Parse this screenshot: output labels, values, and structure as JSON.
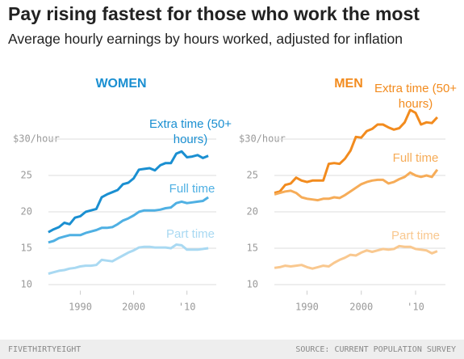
{
  "title": "Pay rising fastest for those who work the most",
  "subtitle": "Average hourly earnings by hours worked, adjusted for inflation",
  "footer": {
    "left": "FIVETHIRTYEIGHT",
    "right": "SOURCE: CURRENT POPULATION SURVEY"
  },
  "chart_data": [
    {
      "type": "line",
      "title": "WOMEN",
      "title_color": "#1a8fd1",
      "x": [
        1984,
        1985,
        1986,
        1987,
        1988,
        1989,
        1990,
        1991,
        1992,
        1993,
        1994,
        1995,
        1996,
        1997,
        1998,
        1999,
        2000,
        2001,
        2002,
        2003,
        2004,
        2005,
        2006,
        2007,
        2008,
        2009,
        2010,
        2011,
        2012,
        2013,
        2014
      ],
      "xlim": [
        1982.5,
        2015.5
      ],
      "xticks": [
        1990,
        2000,
        {
          "value": 2010,
          "label": "'10"
        }
      ],
      "ylim": [
        8.5,
        35.5
      ],
      "yticks": [
        10,
        15,
        20,
        25,
        {
          "value": 30,
          "label": "$30/hour"
        }
      ],
      "grid": true,
      "series": [
        {
          "name": "Extra time (50+ hours)",
          "color": "#1a8fd1",
          "values": [
            17.2,
            17.6,
            17.9,
            18.5,
            18.3,
            19.2,
            19.4,
            20.0,
            20.2,
            20.4,
            22.0,
            22.4,
            22.7,
            23.0,
            23.8,
            24.0,
            24.6,
            25.8,
            25.9,
            26.0,
            25.7,
            26.4,
            26.7,
            26.7,
            28.0,
            28.3,
            27.5,
            27.6,
            27.8,
            27.4,
            27.7
          ]
        },
        {
          "name": "Full time",
          "color": "#4fb0e3",
          "values": [
            15.8,
            16.0,
            16.4,
            16.6,
            16.8,
            16.8,
            16.8,
            17.1,
            17.3,
            17.5,
            17.8,
            17.8,
            17.9,
            18.3,
            18.8,
            19.1,
            19.5,
            20.0,
            20.2,
            20.2,
            20.2,
            20.3,
            20.5,
            20.6,
            21.2,
            21.4,
            21.2,
            21.3,
            21.4,
            21.5,
            22.0
          ]
        },
        {
          "name": "Part time",
          "color": "#a9d9f2",
          "values": [
            11.5,
            11.7,
            11.9,
            12.0,
            12.2,
            12.3,
            12.5,
            12.6,
            12.6,
            12.7,
            13.4,
            13.3,
            13.2,
            13.6,
            14.0,
            14.4,
            14.7,
            15.1,
            15.2,
            15.2,
            15.1,
            15.1,
            15.1,
            15.0,
            15.5,
            15.4,
            14.8,
            14.8,
            14.8,
            14.9,
            15.0
          ]
        }
      ]
    },
    {
      "type": "line",
      "title": "MEN",
      "title_color": "#f28b1e",
      "x": [
        1984,
        1985,
        1986,
        1987,
        1988,
        1989,
        1990,
        1991,
        1992,
        1993,
        1994,
        1995,
        1996,
        1997,
        1998,
        1999,
        2000,
        2001,
        2002,
        2003,
        2004,
        2005,
        2006,
        2007,
        2008,
        2009,
        2010,
        2011,
        2012,
        2013,
        2014
      ],
      "xlim": [
        1982.5,
        2015.5
      ],
      "xticks": [
        1990,
        2000,
        {
          "value": 2010,
          "label": "'10"
        }
      ],
      "ylim": [
        8.5,
        35.5
      ],
      "yticks": [
        10,
        15,
        20,
        25,
        {
          "value": 30,
          "label": "$30/hour"
        }
      ],
      "grid": true,
      "series": [
        {
          "name": "Extra time (50+ hours)",
          "color": "#f28b1e",
          "values": [
            22.6,
            22.8,
            23.7,
            23.9,
            24.7,
            24.3,
            24.1,
            24.3,
            24.3,
            24.3,
            26.6,
            26.7,
            26.6,
            27.3,
            28.4,
            30.3,
            30.2,
            31.1,
            31.4,
            32.0,
            32.0,
            31.6,
            31.3,
            31.5,
            32.3,
            34.0,
            33.6,
            32.0,
            32.3,
            32.2,
            33.0
          ]
        },
        {
          "name": "Full time",
          "color": "#f6ac58",
          "values": [
            22.4,
            22.6,
            22.8,
            22.9,
            22.6,
            22.0,
            21.8,
            21.7,
            21.6,
            21.8,
            21.8,
            22.0,
            21.9,
            22.3,
            22.8,
            23.3,
            23.8,
            24.1,
            24.3,
            24.4,
            24.4,
            23.9,
            24.1,
            24.5,
            24.8,
            25.4,
            25.0,
            24.8,
            25.0,
            24.8,
            25.8
          ]
        },
        {
          "name": "Part time",
          "color": "#f9c88f",
          "values": [
            12.3,
            12.4,
            12.6,
            12.5,
            12.6,
            12.7,
            12.4,
            12.2,
            12.4,
            12.6,
            12.5,
            13.0,
            13.4,
            13.7,
            14.1,
            14.0,
            14.4,
            14.7,
            14.5,
            14.7,
            14.9,
            14.8,
            14.9,
            15.3,
            15.2,
            15.2,
            14.9,
            14.8,
            14.7,
            14.3,
            14.6
          ]
        }
      ]
    }
  ]
}
